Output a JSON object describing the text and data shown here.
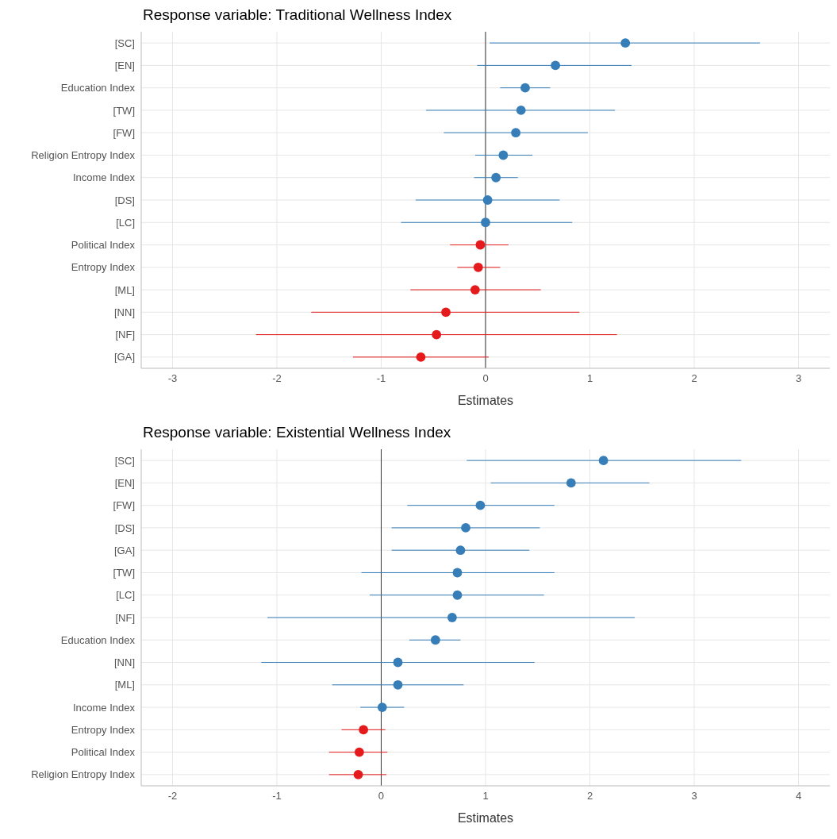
{
  "chart_data": [
    {
      "type": "scatter",
      "title": "Response variable: Traditional Wellness Index",
      "xlabel": "Estimates",
      "orientation": "horizontal",
      "categories": [
        "[SC]",
        "[EN]",
        "Education Index",
        "[TW]",
        "[FW]",
        "Religion Entropy Index",
        "Income Index",
        "[DS]",
        "[LC]",
        "Political Index",
        "Entropy Index",
        "[ML]",
        "[NN]",
        "[NF]",
        "[GA]"
      ],
      "series": [
        {
          "color": "#377eb8",
          "values": [
            1.34,
            0.67,
            0.38,
            0.34,
            0.29,
            0.17,
            0.1,
            0.02,
            0.0,
            null,
            null,
            null,
            null,
            null,
            null
          ],
          "errors": [
            [
              0.04,
              2.63
            ],
            [
              -0.08,
              1.4
            ],
            [
              0.14,
              0.62
            ],
            [
              -0.57,
              1.24
            ],
            [
              -0.4,
              0.98
            ],
            [
              -0.1,
              0.45
            ],
            [
              -0.11,
              0.31
            ],
            [
              -0.67,
              0.71
            ],
            [
              -0.81,
              0.83
            ],
            null,
            null,
            null,
            null,
            null,
            null
          ]
        },
        {
          "color": "#e41a1c",
          "values": [
            null,
            null,
            null,
            null,
            null,
            null,
            null,
            null,
            null,
            -0.05,
            -0.07,
            -0.1,
            -0.38,
            -0.47,
            -0.62
          ],
          "errors": [
            null,
            null,
            null,
            null,
            null,
            null,
            null,
            null,
            null,
            [
              -0.34,
              0.22
            ],
            [
              -0.27,
              0.14
            ],
            [
              -0.72,
              0.53
            ],
            [
              -1.67,
              0.9
            ],
            [
              -2.2,
              1.26
            ],
            [
              -1.27,
              0.03
            ]
          ]
        }
      ],
      "xlim": [
        -3.3,
        3.3
      ],
      "xticks": [
        -3,
        -2,
        -1,
        0,
        1,
        2,
        3
      ],
      "grid": true,
      "marker": "circle",
      "ref_lines": [
        {
          "axis": "x",
          "value": 0,
          "color": "#333333"
        }
      ]
    },
    {
      "type": "scatter",
      "title": "Response variable: Existential Wellness Index",
      "xlabel": "Estimates",
      "orientation": "horizontal",
      "categories": [
        "[SC]",
        "[EN]",
        "[FW]",
        "[DS]",
        "[GA]",
        "[TW]",
        "[LC]",
        "[NF]",
        "Education Index",
        "[NN]",
        "[ML]",
        "Income Index",
        "Entropy Index",
        "Political Index",
        "Religion Entropy Index"
      ],
      "series": [
        {
          "color": "#377eb8",
          "values": [
            2.13,
            1.82,
            0.95,
            0.81,
            0.76,
            0.73,
            0.73,
            0.68,
            0.52,
            0.16,
            0.16,
            0.01,
            null,
            null,
            null
          ],
          "errors": [
            [
              0.82,
              3.45
            ],
            [
              1.05,
              2.57
            ],
            [
              0.25,
              1.66
            ],
            [
              0.1,
              1.52
            ],
            [
              0.1,
              1.42
            ],
            [
              -0.19,
              1.66
            ],
            [
              -0.11,
              1.56
            ],
            [
              -1.09,
              2.43
            ],
            [
              0.27,
              0.76
            ],
            [
              -1.15,
              1.47
            ],
            [
              -0.47,
              0.79
            ],
            [
              -0.2,
              0.22
            ],
            null,
            null,
            null
          ]
        },
        {
          "color": "#e41a1c",
          "values": [
            null,
            null,
            null,
            null,
            null,
            null,
            null,
            null,
            null,
            null,
            null,
            null,
            -0.17,
            -0.21,
            -0.22
          ],
          "errors": [
            null,
            null,
            null,
            null,
            null,
            null,
            null,
            null,
            null,
            null,
            null,
            null,
            [
              -0.38,
              0.04
            ],
            [
              -0.5,
              0.06
            ],
            [
              -0.5,
              0.05
            ]
          ]
        }
      ],
      "xlim": [
        -2.3,
        4.3
      ],
      "xticks": [
        -2,
        -1,
        0,
        1,
        2,
        3,
        4
      ],
      "grid": true,
      "marker": "circle",
      "ref_lines": [
        {
          "axis": "x",
          "value": 0,
          "color": "#333333"
        }
      ]
    }
  ]
}
